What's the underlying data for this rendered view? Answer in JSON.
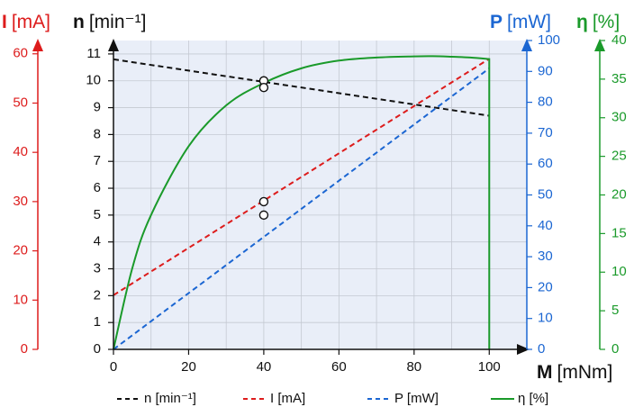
{
  "colors": {
    "n": "#111111",
    "I": "#dd1c1c",
    "P": "#1b66d2",
    "eta": "#1a9a2a",
    "plot_bg": "#e9eef8",
    "grid": "#c4c9d2"
  },
  "chart_data": {
    "type": "line",
    "grid": true,
    "legend_position": "bottom",
    "x_axis": {
      "label_bold": "M",
      "label_unit": "[mNm]",
      "range": [
        0,
        110
      ],
      "ticks": [
        0,
        20,
        40,
        60,
        80,
        100
      ]
    },
    "axes": {
      "n": {
        "label_bold": "n",
        "label_unit": "[min⁻¹]",
        "range": [
          0,
          11.5
        ],
        "ticks": [
          0,
          1,
          2,
          3,
          4,
          5,
          6,
          7,
          8,
          9,
          10,
          11
        ]
      },
      "I": {
        "label_bold": "I",
        "label_unit": "[mA]",
        "range": [
          0,
          62.7
        ],
        "ticks": [
          0,
          10,
          20,
          30,
          40,
          50,
          60
        ]
      },
      "P": {
        "label_bold": "P",
        "label_unit": "[mW]",
        "range": [
          0,
          100
        ],
        "ticks": [
          0,
          10,
          20,
          30,
          40,
          50,
          60,
          70,
          80,
          90,
          100
        ]
      },
      "eta": {
        "label_bold": "η",
        "label_unit": "[%]",
        "range": [
          0,
          40
        ],
        "ticks": [
          0,
          5,
          10,
          15,
          20,
          25,
          30,
          35,
          40
        ]
      }
    },
    "series": [
      {
        "key": "n",
        "name": "n [min⁻¹]",
        "axis": "n",
        "style": "dashed",
        "x": [
          0,
          100
        ],
        "y": [
          10.8,
          8.7
        ]
      },
      {
        "key": "I",
        "name": "I [mA]",
        "axis": "I",
        "style": "dashed",
        "x": [
          0,
          100
        ],
        "y": [
          11,
          59
        ]
      },
      {
        "key": "P",
        "name": "P [mW]",
        "axis": "P",
        "style": "dashed",
        "x": [
          0,
          100
        ],
        "y": [
          0,
          91
        ]
      },
      {
        "key": "eta",
        "name": "η [%]",
        "axis": "eta",
        "style": "solid",
        "x": [
          0,
          5,
          10,
          20,
          30,
          40,
          50,
          60,
          70,
          80,
          85,
          90,
          95,
          100,
          100
        ],
        "y": [
          0,
          10.5,
          17.4,
          26.3,
          31.6,
          34.5,
          36.4,
          37.4,
          37.8,
          37.95,
          37.97,
          37.9,
          37.8,
          37.6,
          0
        ]
      }
    ],
    "markers": [
      {
        "axis": "n",
        "x": 40,
        "y": 10.0
      },
      {
        "axis": "n",
        "x": 40,
        "y": 9.75
      },
      {
        "axis": "n",
        "x": 40,
        "y": 5.5
      },
      {
        "axis": "n",
        "x": 40,
        "y": 5.0
      }
    ]
  }
}
